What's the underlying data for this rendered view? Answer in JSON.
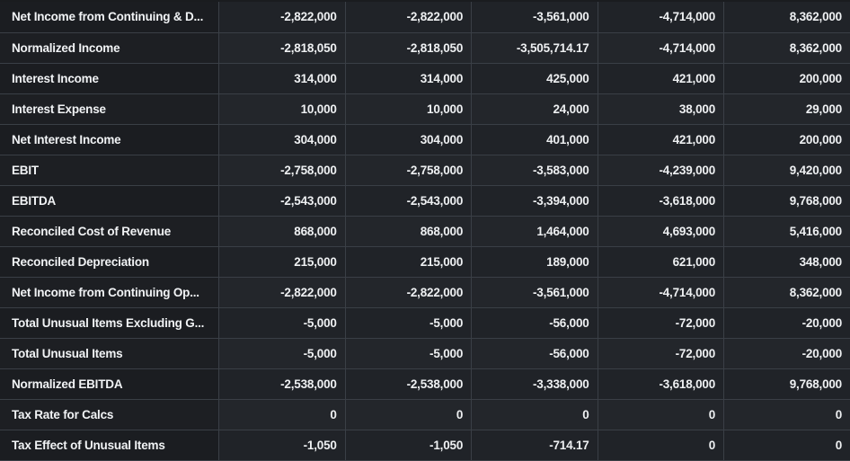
{
  "table": {
    "rows": [
      {
        "label": "Net Income from Continuing & D...",
        "values": [
          "-2,822,000",
          "-2,822,000",
          "-3,561,000",
          "-4,714,000",
          "8,362,000"
        ]
      },
      {
        "label": "Normalized Income",
        "values": [
          "-2,818,050",
          "-2,818,050",
          "-3,505,714.17",
          "-4,714,000",
          "8,362,000"
        ]
      },
      {
        "label": "Interest Income",
        "values": [
          "314,000",
          "314,000",
          "425,000",
          "421,000",
          "200,000"
        ]
      },
      {
        "label": "Interest Expense",
        "values": [
          "10,000",
          "10,000",
          "24,000",
          "38,000",
          "29,000"
        ]
      },
      {
        "label": "Net Interest Income",
        "values": [
          "304,000",
          "304,000",
          "401,000",
          "421,000",
          "200,000"
        ]
      },
      {
        "label": "EBIT",
        "values": [
          "-2,758,000",
          "-2,758,000",
          "-3,583,000",
          "-4,239,000",
          "9,420,000"
        ]
      },
      {
        "label": "EBITDA",
        "values": [
          "-2,543,000",
          "-2,543,000",
          "-3,394,000",
          "-3,618,000",
          "9,768,000"
        ]
      },
      {
        "label": "Reconciled Cost of Revenue",
        "values": [
          "868,000",
          "868,000",
          "1,464,000",
          "4,693,000",
          "5,416,000"
        ]
      },
      {
        "label": "Reconciled Depreciation",
        "values": [
          "215,000",
          "215,000",
          "189,000",
          "621,000",
          "348,000"
        ]
      },
      {
        "label": "Net Income from Continuing Op...",
        "values": [
          "-2,822,000",
          "-2,822,000",
          "-3,561,000",
          "-4,714,000",
          "8,362,000"
        ]
      },
      {
        "label": "Total Unusual Items Excluding G...",
        "values": [
          "-5,000",
          "-5,000",
          "-56,000",
          "-72,000",
          "-20,000"
        ]
      },
      {
        "label": "Total Unusual Items",
        "values": [
          "-5,000",
          "-5,000",
          "-56,000",
          "-72,000",
          "-20,000"
        ]
      },
      {
        "label": "Normalized EBITDA",
        "values": [
          "-2,538,000",
          "-2,538,000",
          "-3,338,000",
          "-3,618,000",
          "9,768,000"
        ]
      },
      {
        "label": "Tax Rate for Calcs",
        "values": [
          "0",
          "0",
          "0",
          "0",
          "0"
        ]
      },
      {
        "label": "Tax Effect of Unusual Items",
        "values": [
          "-1,050",
          "-1,050",
          "-714.17",
          "0",
          "0"
        ]
      }
    ]
  }
}
